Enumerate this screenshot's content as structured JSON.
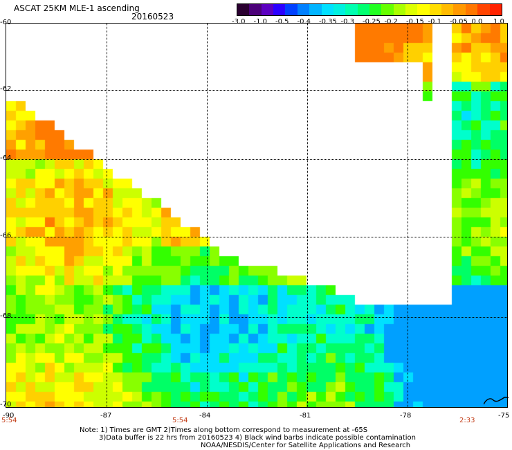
{
  "header": {
    "title": "ASCAT 25KM MLE-1 ascending",
    "date": "20160523"
  },
  "colorbar": {
    "labels": [
      "-3.0",
      "-1.0",
      "-0.5",
      "-0.4",
      "-0.35",
      "-0.3",
      "-0.25",
      "-0.2",
      "-0.15",
      "-0.1",
      "-0.05",
      "0.0",
      "1.0"
    ],
    "colors": [
      "#2a0030",
      "#5b0090",
      "#2a00ff",
      "#0066ff",
      "#00b4ff",
      "#00f0f0",
      "#00ff99",
      "#22ff22",
      "#99ff00",
      "#ffff00",
      "#ffcc00",
      "#ff8800",
      "#ff2200"
    ]
  },
  "axes": {
    "lat_labels": [
      "-60",
      "-62",
      "-64",
      "-66",
      "-68",
      "-70"
    ],
    "lon_labels": [
      "-90",
      "-87",
      "-84",
      "-81",
      "-78",
      "-75"
    ]
  },
  "time_labels": [
    "5:54",
    "5:54",
    "2:33"
  ],
  "notes": [
    "Note: 1) Times are GMT 2)Times along bottom correspond to measurement at -65S",
    "3)Data buffer is 22 hrs from 20160523 4) Black wind barbs indicate possible contamination",
    "NOAA/NESDIS/Center for Satellite Applications and Research"
  ]
}
